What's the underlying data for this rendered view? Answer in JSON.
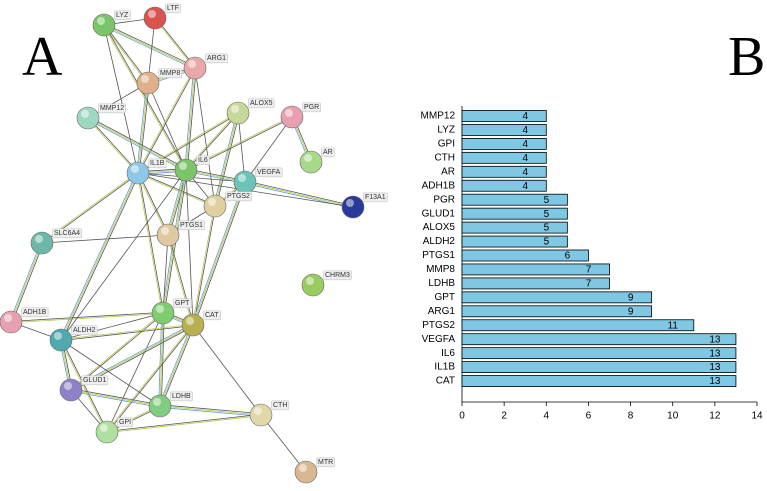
{
  "network": {
    "panel_label": "A",
    "nodes": [
      {
        "label": "LYZ"
      },
      {
        "label": "LTF"
      },
      {
        "label": "MMP8"
      },
      {
        "label": "ARG1"
      },
      {
        "label": "MMP12"
      },
      {
        "label": "ALOX5"
      },
      {
        "label": "PGR"
      },
      {
        "label": "AR"
      },
      {
        "label": "IL1B"
      },
      {
        "label": "IL6"
      },
      {
        "label": "VEGFA"
      },
      {
        "label": "PTGS2"
      },
      {
        "label": "F13A1"
      },
      {
        "label": "PTGS1"
      },
      {
        "label": "SLC6A4"
      },
      {
        "label": "CHRM3"
      },
      {
        "label": "GPT"
      },
      {
        "label": "CAT"
      },
      {
        "label": "ADH1B"
      },
      {
        "label": "ALDH2"
      },
      {
        "label": "GLUD1"
      },
      {
        "label": "LDHB"
      },
      {
        "label": "GPI"
      },
      {
        "label": "CTH"
      },
      {
        "label": "MTR"
      }
    ]
  },
  "chart_data": {
    "type": "bar",
    "orientation": "horizontal",
    "panel_label": "B",
    "categories": [
      "MMP12",
      "LYZ",
      "GPI",
      "CTH",
      "AR",
      "ADH1B",
      "PGR",
      "GLUD1",
      "ALOX5",
      "ALDH2",
      "PTGS1",
      "MMP8",
      "LDHB",
      "GPT",
      "ARG1",
      "PTGS2",
      "VEGFA",
      "IL6",
      "IL1B",
      "CAT"
    ],
    "values": [
      4,
      4,
      4,
      4,
      4,
      4,
      5,
      5,
      5,
      5,
      6,
      7,
      7,
      9,
      9,
      11,
      13,
      13,
      13,
      13
    ],
    "color": "#7ec8e3",
    "xlim": [
      0,
      14
    ],
    "xticks": [
      0,
      2,
      4,
      6,
      8,
      10,
      12,
      14
    ]
  }
}
